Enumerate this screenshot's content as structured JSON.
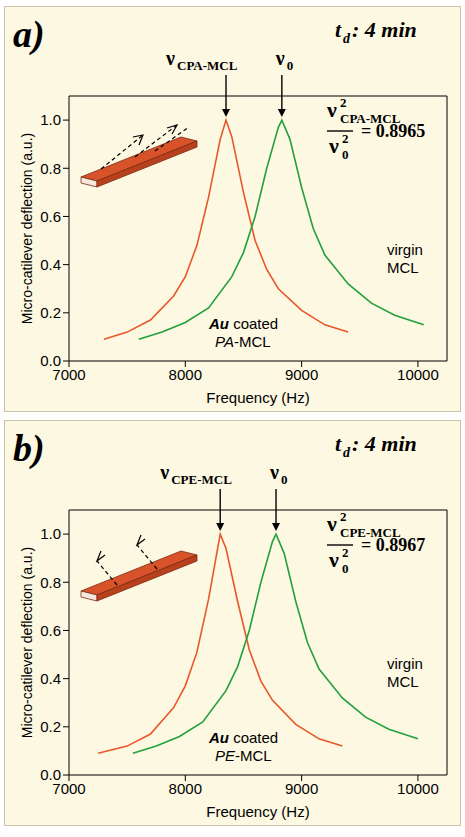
{
  "chart_data": [
    {
      "type": "line",
      "panel_label": "a)",
      "time_label": {
        "symbol": "t",
        "sub": "d",
        "text": ": 4 min"
      },
      "x_label": "Frequency (Hz)",
      "y_label": "Micro-catilever deflection (a.u.)",
      "xlim": [
        7000,
        10250
      ],
      "xticks": [
        7000,
        8000,
        9000,
        10000
      ],
      "ylim": [
        0,
        1.1
      ],
      "yticks": [
        {
          "value": 0,
          "label": "0.0"
        },
        0.2,
        0.4,
        0.6,
        0.8,
        {
          "value": 1,
          "label": "1.0"
        }
      ],
      "peak_labels": [
        {
          "symbol": "ν",
          "sub": "CPA-MCL"
        },
        {
          "symbol": "ν",
          "sub": "0"
        }
      ],
      "ratio": {
        "symbol": "ν",
        "sup": "2",
        "numerator_sub": "CPA-MCL",
        "denominator_sub": "0",
        "equals": "=",
        "value": 0.8965
      },
      "series": [
        {
          "name": "Au coated PA-MCL",
          "color": "#e8572a",
          "x": [
            7300,
            7500,
            7700,
            7900,
            8000,
            8100,
            8200,
            8300,
            8350,
            8400,
            8500,
            8600,
            8700,
            8800,
            9000,
            9200,
            9400
          ],
          "values": [
            0.09,
            0.12,
            0.17,
            0.27,
            0.35,
            0.48,
            0.68,
            0.92,
            1.0,
            0.93,
            0.7,
            0.5,
            0.38,
            0.3,
            0.21,
            0.15,
            0.12
          ]
        },
        {
          "name": "virgin MCL",
          "color": "#22a03c",
          "x": [
            7600,
            7800,
            8000,
            8200,
            8400,
            8500,
            8600,
            8700,
            8800,
            8830,
            8900,
            9000,
            9100,
            9200,
            9400,
            9600,
            9800,
            10050
          ],
          "values": [
            0.09,
            0.12,
            0.16,
            0.22,
            0.35,
            0.45,
            0.6,
            0.8,
            0.97,
            1.0,
            0.92,
            0.72,
            0.55,
            0.44,
            0.32,
            0.24,
            0.19,
            0.15
          ]
        }
      ]
    },
    {
      "type": "line",
      "panel_label": "b)",
      "time_label": {
        "symbol": "t",
        "sub": "d",
        "text": ": 4 min"
      },
      "x_label": "Frequency (Hz)",
      "y_label": "Micro-catilever deflection (a.u.)",
      "xlim": [
        7000,
        10250
      ],
      "xticks": [
        7000,
        8000,
        9000,
        10000
      ],
      "ylim": [
        0,
        1.1
      ],
      "yticks": [
        {
          "value": 0,
          "label": "0.0"
        },
        0.2,
        0.4,
        0.6,
        0.8,
        {
          "value": 1,
          "label": "1.0"
        }
      ],
      "peak_labels": [
        {
          "symbol": "ν",
          "sub": "CPE-MCL"
        },
        {
          "symbol": "ν",
          "sub": "0"
        }
      ],
      "ratio": {
        "symbol": "ν",
        "sup": "2",
        "numerator_sub": "CPE-MCL",
        "denominator_sub": "0",
        "equals": "=",
        "value": 0.8967
      },
      "series": [
        {
          "name": "Au coated PE-MCL",
          "color": "#e8572a",
          "x": [
            7250,
            7500,
            7700,
            7900,
            8000,
            8100,
            8200,
            8300,
            8350,
            8450,
            8550,
            8650,
            8750,
            8950,
            9150,
            9350
          ],
          "values": [
            0.09,
            0.12,
            0.17,
            0.28,
            0.37,
            0.51,
            0.73,
            1.0,
            0.94,
            0.72,
            0.52,
            0.39,
            0.31,
            0.21,
            0.15,
            0.12
          ]
        },
        {
          "name": "virgin MCL",
          "color": "#22a03c",
          "x": [
            7550,
            7750,
            7950,
            8150,
            8350,
            8450,
            8550,
            8650,
            8750,
            8780,
            8850,
            8950,
            9050,
            9150,
            9350,
            9550,
            9750,
            10000
          ],
          "values": [
            0.09,
            0.12,
            0.16,
            0.22,
            0.35,
            0.45,
            0.6,
            0.8,
            0.97,
            1.0,
            0.92,
            0.72,
            0.55,
            0.44,
            0.32,
            0.24,
            0.19,
            0.15
          ]
        }
      ]
    }
  ]
}
